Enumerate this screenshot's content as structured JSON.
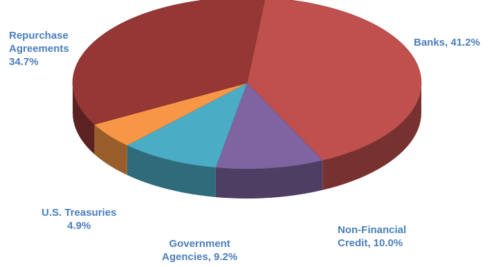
{
  "chart_data": {
    "type": "pie",
    "style": "3d",
    "slices": [
      {
        "name": "Banks",
        "value": 41.2,
        "color": "#c0504d",
        "label_lines": [
          "Banks, 41.2%"
        ]
      },
      {
        "name": "Non-Financial Credit",
        "value": 10.0,
        "color": "#8064a2",
        "label_lines": [
          "Non-Financial",
          "Credit, 10.0%"
        ]
      },
      {
        "name": "Government Agencies",
        "value": 9.2,
        "color": "#4bacc6",
        "label_lines": [
          "Government",
          "Agencies, 9.2%"
        ]
      },
      {
        "name": "U.S. Treasuries",
        "value": 4.9,
        "color": "#f79646",
        "label_lines": [
          "U.S. Treasuries",
          "4.9%"
        ]
      },
      {
        "name": "Repurchase Agreements",
        "value": 34.7,
        "color": "#953735",
        "label_lines": [
          "Repurchase",
          "Agreements",
          "34.7%"
        ]
      }
    ],
    "label_color": "#4a7ebb"
  }
}
